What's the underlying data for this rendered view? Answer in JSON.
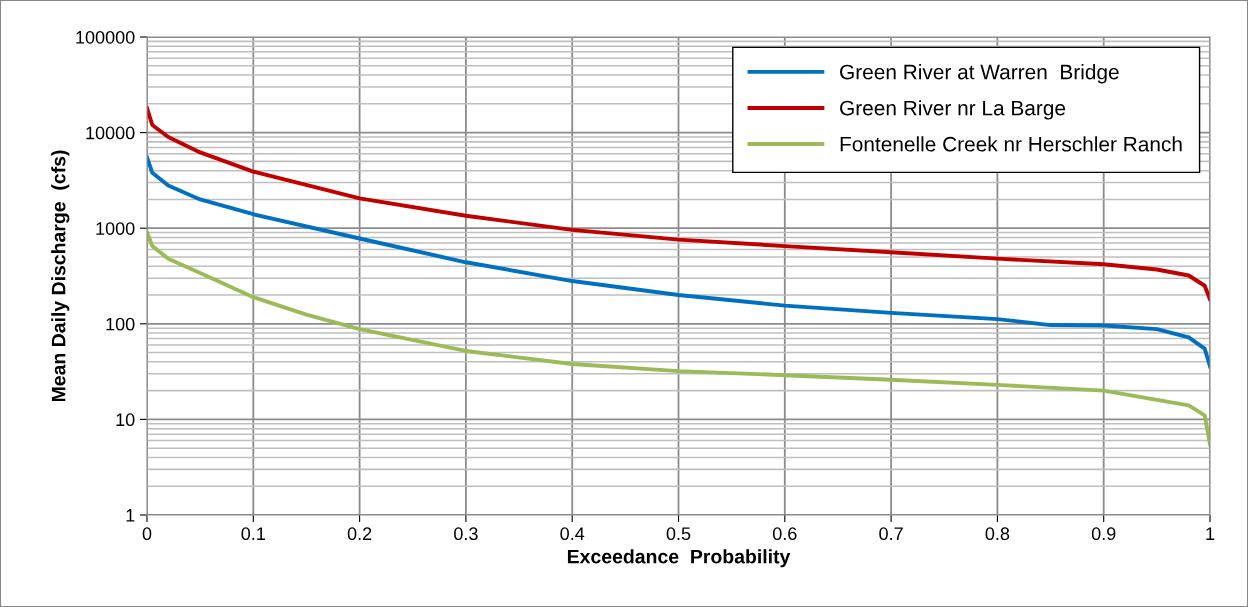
{
  "chart_data": {
    "type": "line",
    "xlabel": "Exceedance  Probability",
    "ylabel": "Mean Daily Discharge  (cfs)",
    "log": "y",
    "grid": true,
    "legend": "top right",
    "marker": "none",
    "line_style": "solid",
    "xlim": [
      0,
      1
    ],
    "xticks": [
      0,
      0.1,
      0.2,
      0.3,
      0.4,
      0.5,
      0.6,
      0.7,
      0.8,
      0.9,
      1
    ],
    "ylim": [
      1,
      100000
    ],
    "yticks": [
      1,
      10,
      100,
      1000,
      10000,
      100000
    ],
    "series": [
      {
        "name": "Green River at Warren  Bridge",
        "color": "#0070c0",
        "x": [
          0,
          0.005,
          0.02,
          0.05,
          0.1,
          0.2,
          0.3,
          0.4,
          0.5,
          0.6,
          0.7,
          0.8,
          0.85,
          0.9,
          0.95,
          0.98,
          0.995,
          1
        ],
        "values": [
          5500,
          3800,
          2800,
          2000,
          1400,
          780,
          440,
          280,
          200,
          155,
          130,
          112,
          97,
          96,
          88,
          72,
          55,
          36
        ]
      },
      {
        "name": "Green River nr La Barge",
        "color": "#c00000",
        "x": [
          0,
          0.005,
          0.02,
          0.05,
          0.1,
          0.2,
          0.3,
          0.4,
          0.5,
          0.6,
          0.7,
          0.8,
          0.9,
          0.95,
          0.98,
          0.995,
          1
        ],
        "values": [
          18000,
          12000,
          9000,
          6200,
          3900,
          2050,
          1350,
          960,
          760,
          650,
          560,
          480,
          420,
          370,
          320,
          250,
          180
        ]
      },
      {
        "name": "Fontenelle Creek nr Herschler Ranch",
        "color": "#9bbb59",
        "x": [
          0,
          0.005,
          0.02,
          0.05,
          0.1,
          0.15,
          0.2,
          0.3,
          0.4,
          0.5,
          0.6,
          0.7,
          0.8,
          0.9,
          0.95,
          0.98,
          0.995,
          1
        ],
        "values": [
          900,
          650,
          480,
          340,
          190,
          125,
          88,
          52,
          38,
          32,
          29,
          26,
          23,
          20,
          16,
          14,
          11,
          5.5
        ]
      }
    ]
  }
}
